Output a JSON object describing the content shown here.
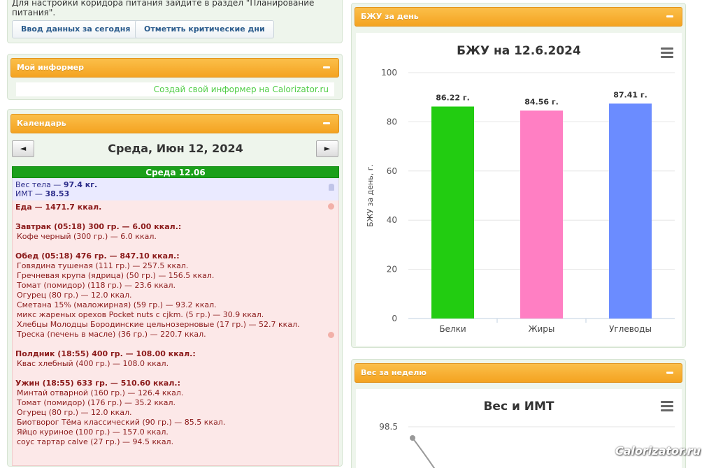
{
  "top_panel": {
    "hint": "Для настройки коридора питания зайдите в раздел \"Планирование питания\".",
    "btn_input_today": "Ввод данных за сегодня",
    "btn_critical_days": "Отметить критические дни"
  },
  "informer": {
    "title": "Мой информер",
    "link": "Создай свой информер на Calorizator.ru"
  },
  "calendar": {
    "title": "Календарь",
    "prev": "◄",
    "next": "►",
    "date_title": "Среда, Июн 12, 2024",
    "day_label": "Среда 12.06",
    "weight_label": "Вес тела — ",
    "weight_value": "97.4 кг.",
    "bmi_label": "ИМТ — ",
    "bmi_value": "38.53",
    "food_total": "Еда — 1471.7 ккал.",
    "meals": [
      {
        "title": "Завтрак (05:18) 300 гр. — 6.00 ккал.:",
        "items": [
          "Кофе черный (300 гр.) — 6.0 ккал."
        ]
      },
      {
        "title": "Обед (05:18) 476 гр. — 847.10 ккал.:",
        "items": [
          "Говядина тушеная (111 гр.) — 257.5 ккал.",
          "Гречневая крупа (ядрица) (50 гр.) — 156.5 ккал.",
          "Томат (помидор) (118 гр.) — 23.6 ккал.",
          "Огурец (80 гр.) — 12.0 ккал.",
          "Сметана 15% (маложирная) (59 гр.) — 93.2 ккал.",
          "микс жареных орехов Pocket nuts c cjkm. (5 гр.) — 30.9 ккал.",
          "Хлебцы Молодцы Бородинские цельнозерновые (17 гр.) — 52.7 ккал.",
          "Треска (печень в масле) (36 гр.) — 220.7 ккал."
        ]
      },
      {
        "title": "Полдник (18:55) 400 гр. — 108.00 ккал.:",
        "items": [
          "Квас хлебный (400 гр.) — 108.0 ккал."
        ]
      },
      {
        "title": "Ужин (18:55) 633 гр. — 510.60 ккал.:",
        "items": [
          "Минтай отварной (160 гр.) — 126.4 ккал.",
          "Томат (помидор) (176 гр.) — 35.2 ккал.",
          "Огурец (80 гр.) — 12.0 ккал.",
          "Биотворог Тёма классический (90 гр.) — 85.5 ккал.",
          "Яйцо куриное (100 гр.) — 157.0 ккал.",
          "соус тартар calve (27 гр.) — 94.5 ккал."
        ]
      }
    ]
  },
  "bju_panel": {
    "title": "БЖУ за день"
  },
  "week_panel": {
    "title": "Вес за неделю"
  },
  "watermark": "Calorizator.ru",
  "colors": {
    "orange": "#f4a321",
    "green_bar": "#22cc11",
    "pink_bar": "#ff7fc3",
    "blue_bar": "#6b8cff"
  },
  "chart_data": [
    {
      "type": "bar",
      "title": "БЖУ на 12.6.2024",
      "ylabel": "БЖУ за день, г.",
      "categories": [
        "Белки",
        "Жиры",
        "Углеводы"
      ],
      "values": [
        86.22,
        84.56,
        87.41
      ],
      "data_labels": [
        "86.22 г.",
        "84.56 г.",
        "87.41 г."
      ],
      "bar_colors": [
        "#22cc11",
        "#ff7fc3",
        "#6b8cff"
      ],
      "ylim": [
        0,
        100
      ],
      "yticks": [
        0,
        20,
        40,
        60,
        80,
        100
      ],
      "grid": true
    },
    {
      "type": "line",
      "title": "Вес и ИМТ",
      "yticks_visible": [
        98.5
      ],
      "series": [
        {
          "values": [
            98.5
          ]
        }
      ]
    }
  ]
}
